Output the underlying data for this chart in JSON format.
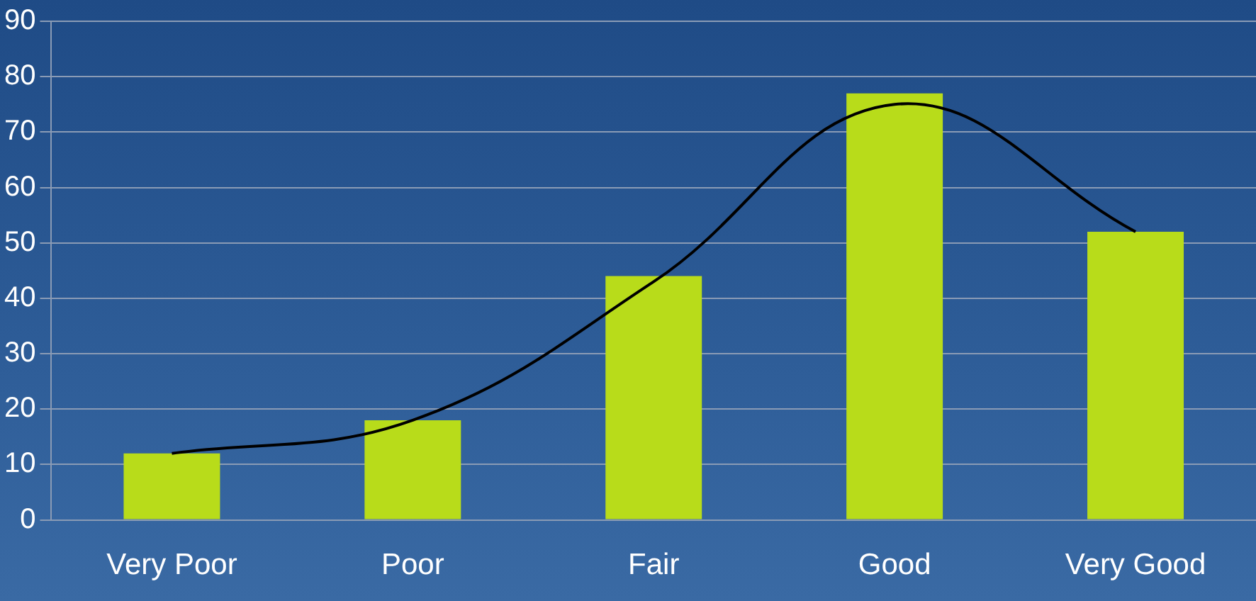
{
  "chart_data": {
    "type": "bar",
    "categories": [
      "Very Poor",
      "Poor",
      "Fair",
      "Good",
      "Very Good"
    ],
    "series": [
      {
        "color": "#b8dc1a",
        "values": [
          12,
          18,
          44,
          77,
          52
        ]
      },
      {
        "type": "line",
        "color": "#000000",
        "values": [
          12,
          18,
          43,
          75,
          52
        ]
      }
    ],
    "ylim": [
      0,
      90
    ],
    "yticks": [
      0,
      10,
      20,
      30,
      40,
      50,
      60,
      70,
      80,
      90
    ],
    "grid": "y",
    "legend": false,
    "marker": "none",
    "line_style": "solid"
  }
}
